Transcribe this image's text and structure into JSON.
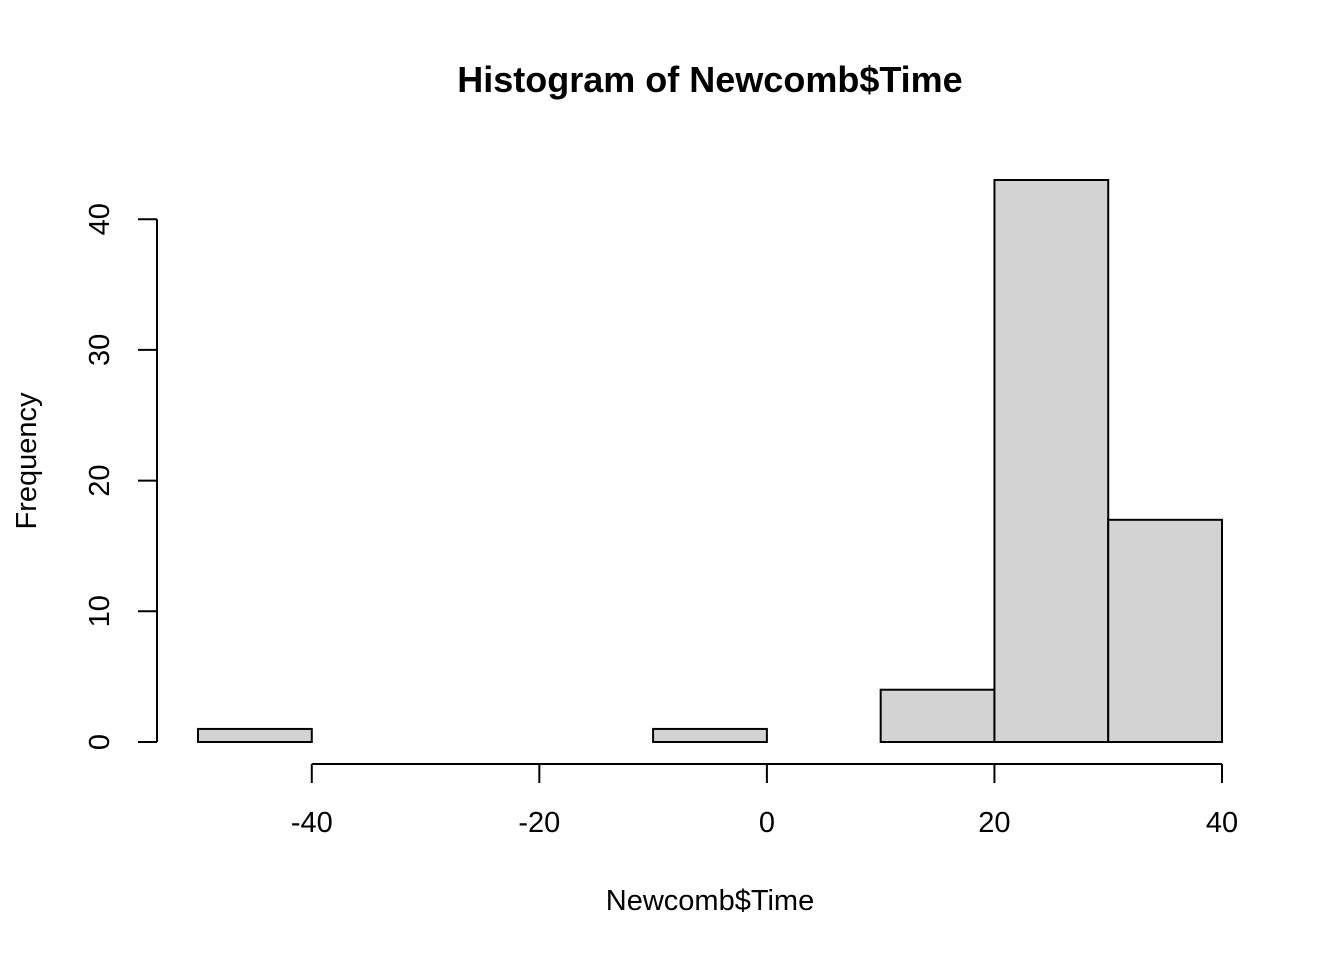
{
  "chart_data": {
    "type": "bar",
    "title": "Histogram of Newcomb$Time",
    "xlabel": "Newcomb$Time",
    "ylabel": "Frequency",
    "bins": [
      {
        "start": -50,
        "end": -40,
        "count": 1
      },
      {
        "start": -40,
        "end": -30,
        "count": 0
      },
      {
        "start": -30,
        "end": -20,
        "count": 0
      },
      {
        "start": -20,
        "end": -10,
        "count": 0
      },
      {
        "start": -10,
        "end": 0,
        "count": 1
      },
      {
        "start": 0,
        "end": 10,
        "count": 0
      },
      {
        "start": 10,
        "end": 20,
        "count": 4
      },
      {
        "start": 20,
        "end": 30,
        "count": 43
      },
      {
        "start": 30,
        "end": 40,
        "count": 17
      }
    ],
    "xticks": [
      -40,
      -20,
      0,
      20,
      40
    ],
    "yticks": [
      0,
      10,
      20,
      30,
      40
    ],
    "xlim": [
      -50,
      40
    ],
    "ylim": [
      0,
      43
    ],
    "bar_color": "#d3d3d3",
    "grid": false,
    "legend": "none"
  }
}
